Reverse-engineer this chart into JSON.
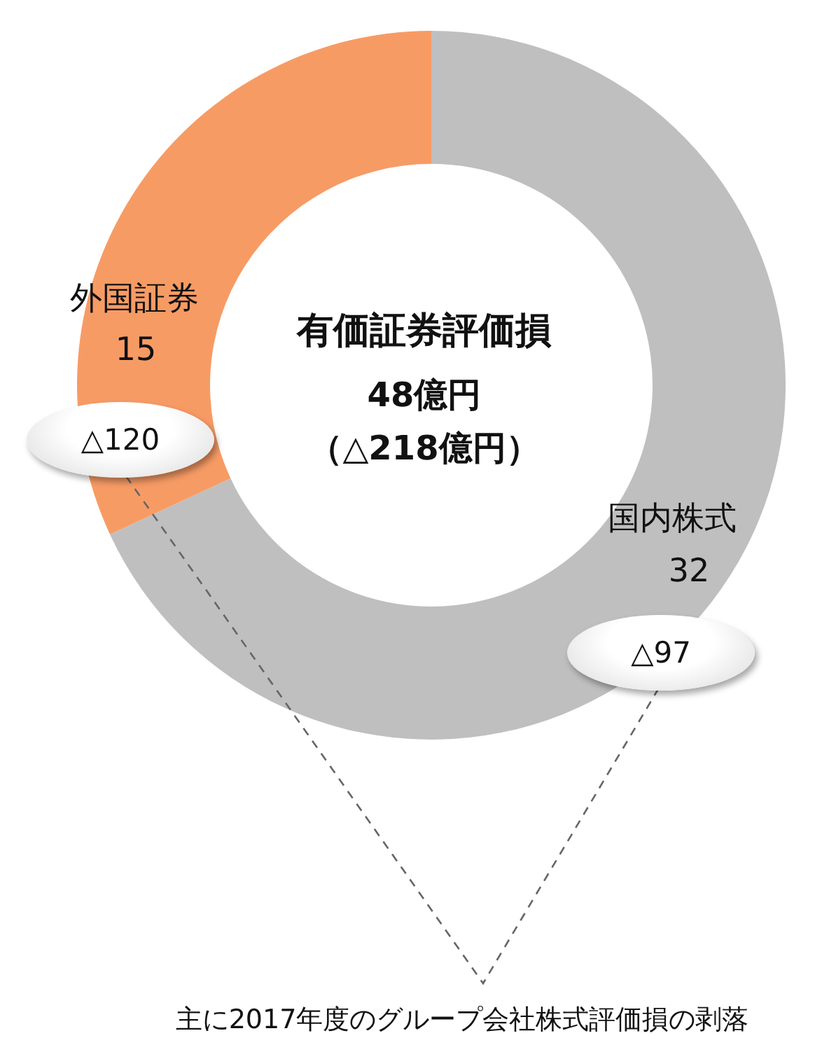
{
  "chart_data": {
    "type": "donut",
    "title": "有価証券評価損",
    "categories": [
      "国内株式",
      "外国証券"
    ],
    "values": [
      32,
      15
    ],
    "colors": [
      "#bfbfbf",
      "#f79b65"
    ],
    "data_labels": true,
    "annotations": [
      "48億円",
      "（△218億円）",
      "△97",
      "△120",
      "主に2017年度のグループ会社株式評価損の剥落"
    ]
  }
}
